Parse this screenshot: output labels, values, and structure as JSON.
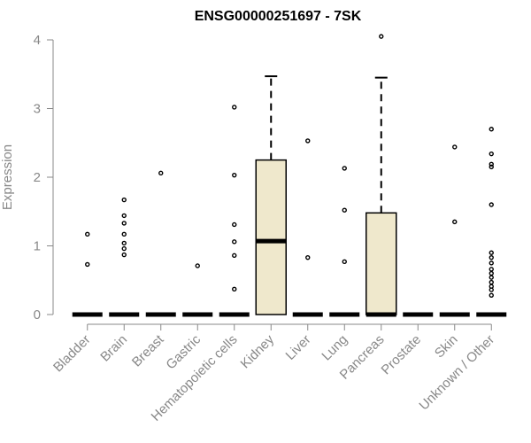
{
  "chart_data": {
    "type": "box",
    "title": "ENSG00000251697 - 7SK",
    "xlabel": "",
    "ylabel": "Expression",
    "ylim": [
      0,
      4.1
    ],
    "yticks": [
      0,
      1,
      2,
      3,
      4
    ],
    "grid": false,
    "legend": "none",
    "box_fill": "#EFE8CC",
    "categories": [
      "Bladder",
      "Brain",
      "Breast",
      "Gastric",
      "Hematopoietic cells",
      "Kidney",
      "Liver",
      "Lung",
      "Pancreas",
      "Prostate",
      "Skin",
      "Unknown / Other"
    ],
    "boxes": [
      {
        "category": "Bladder",
        "q1": 0,
        "median": 0,
        "q3": 0,
        "whisker_low": 0,
        "whisker_high": 0,
        "outliers": [
          0.73,
          1.17
        ]
      },
      {
        "category": "Brain",
        "q1": 0,
        "median": 0,
        "q3": 0,
        "whisker_low": 0,
        "whisker_high": 0,
        "outliers": [
          0.87,
          0.96,
          1.04,
          1.17,
          1.33,
          1.44,
          1.67
        ]
      },
      {
        "category": "Breast",
        "q1": 0,
        "median": 0,
        "q3": 0,
        "whisker_low": 0,
        "whisker_high": 0,
        "outliers": [
          2.06
        ]
      },
      {
        "category": "Gastric",
        "q1": 0,
        "median": 0,
        "q3": 0,
        "whisker_low": 0,
        "whisker_high": 0,
        "outliers": [
          0.71
        ]
      },
      {
        "category": "Hematopoietic cells",
        "q1": 0,
        "median": 0,
        "q3": 0,
        "whisker_low": 0,
        "whisker_high": 0,
        "outliers": [
          0.37,
          0.86,
          1.06,
          1.31,
          2.03,
          3.02
        ]
      },
      {
        "category": "Kidney",
        "q1": 0,
        "median": 1.07,
        "q3": 2.25,
        "whisker_low": 0,
        "whisker_high": 3.47,
        "outliers": []
      },
      {
        "category": "Liver",
        "q1": 0,
        "median": 0,
        "q3": 0,
        "whisker_low": 0,
        "whisker_high": 0,
        "outliers": [
          0.83,
          2.53
        ]
      },
      {
        "category": "Lung",
        "q1": 0,
        "median": 0,
        "q3": 0,
        "whisker_low": 0,
        "whisker_high": 0,
        "outliers": [
          0.77,
          1.52,
          2.13
        ]
      },
      {
        "category": "Pancreas",
        "q1": 0,
        "median": 0,
        "q3": 1.48,
        "whisker_low": 0,
        "whisker_high": 3.45,
        "outliers": [
          4.05
        ]
      },
      {
        "category": "Prostate",
        "q1": 0,
        "median": 0,
        "q3": 0,
        "whisker_low": 0,
        "whisker_high": 0,
        "outliers": []
      },
      {
        "category": "Skin",
        "q1": 0,
        "median": 0,
        "q3": 0,
        "whisker_low": 0,
        "whisker_high": 0,
        "outliers": [
          1.35,
          2.44
        ]
      },
      {
        "category": "Unknown / Other",
        "q1": 0,
        "median": 0,
        "q3": 0,
        "whisker_low": 0,
        "whisker_high": 0,
        "outliers": [
          0.28,
          0.36,
          0.41,
          0.47,
          0.54,
          0.6,
          0.66,
          0.75,
          0.83,
          0.9,
          1.6,
          2.15,
          2.19,
          2.34,
          2.7
        ]
      }
    ]
  }
}
